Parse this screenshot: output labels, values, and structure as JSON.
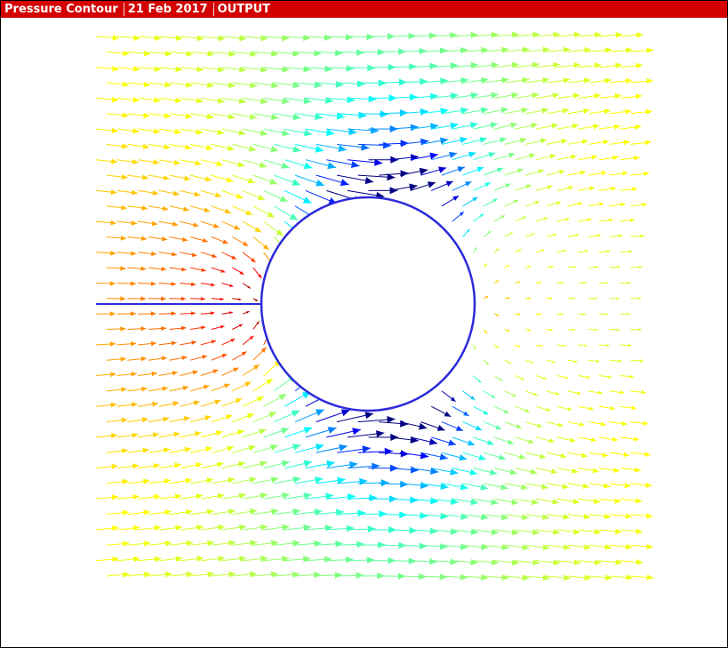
{
  "window": {
    "title_segments": [
      "Pressure Contour",
      "21 Feb 2017",
      "OUTPUT"
    ],
    "titlebar_color": "#d40000"
  },
  "plot": {
    "kind": "vector field of flow around a circular cylinder, arrows colored by pressure",
    "colormap": "jet (red = high, blue = low)",
    "cylinder_color": "#2b2bd9",
    "splitter_plate_color": "#2b2bd9",
    "background": "#ffffff"
  }
}
